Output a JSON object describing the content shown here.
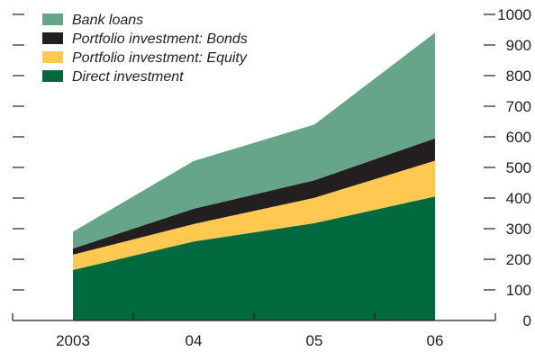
{
  "chart_data": {
    "type": "area",
    "stacked": true,
    "categories": [
      "2003",
      "04",
      "05",
      "06"
    ],
    "ylim": [
      0,
      1000
    ],
    "yticks": [
      0,
      100,
      200,
      300,
      400,
      500,
      600,
      700,
      800,
      900,
      1000
    ],
    "legend_position": "top-left",
    "grid": false,
    "series": [
      {
        "name": "Direct investment",
        "values": [
          165,
          258,
          318,
          405
        ],
        "color": "#006a3e"
      },
      {
        "name": "Portfolio investment: Equity",
        "values": [
          50,
          57,
          83,
          117
        ],
        "color": "#ffc850"
      },
      {
        "name": "Portfolio investment: Bonds",
        "values": [
          20,
          50,
          57,
          73
        ],
        "color": "#231f20"
      },
      {
        "name": "Bank loans",
        "values": [
          55,
          156,
          182,
          345
        ],
        "color": "#66a58a"
      }
    ],
    "legend_order": [
      "Bank loans",
      "Portfolio investment: Bonds",
      "Portfolio investment: Equity",
      "Direct investment"
    ]
  }
}
